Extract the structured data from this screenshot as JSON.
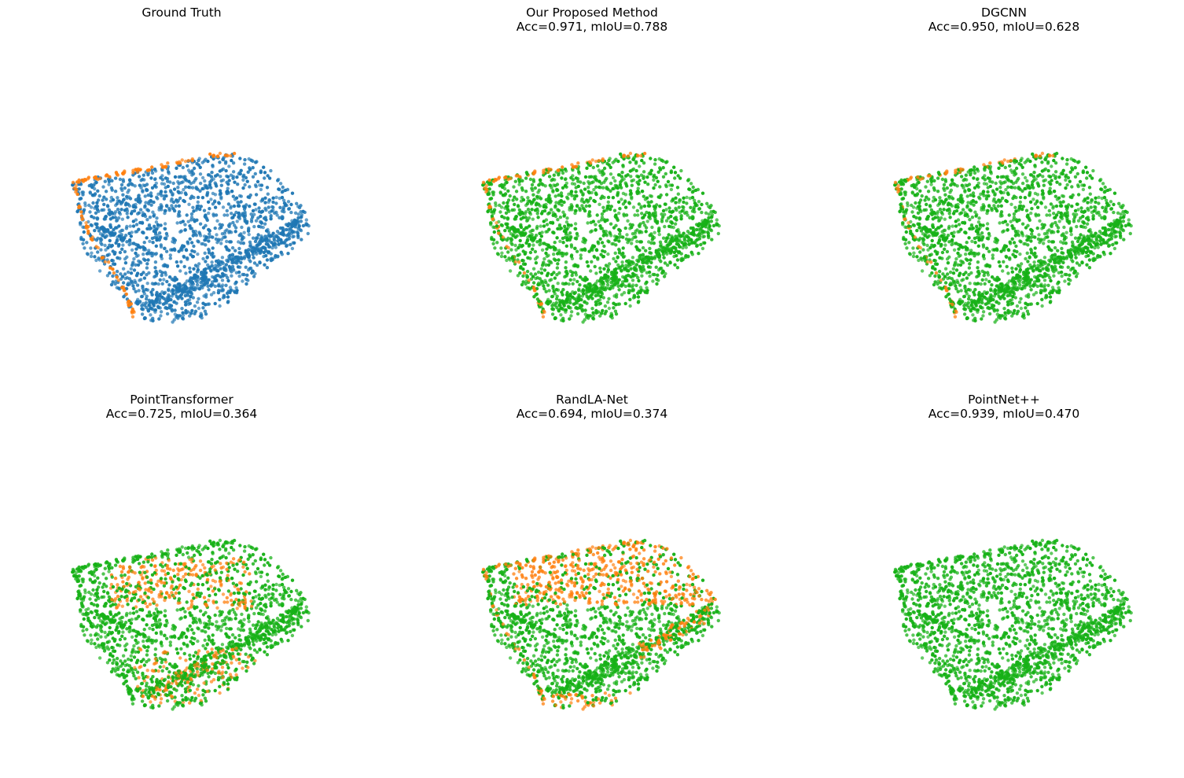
{
  "chart_data": [
    {
      "type": "scatter",
      "title": "Ground Truth",
      "subtitle": "",
      "pattern": "gt",
      "colors": {
        "majority": "#1f77b4",
        "minority": "#ff7f0e"
      }
    },
    {
      "type": "scatter",
      "title": "Our Proposed Method",
      "subtitle": "Acc=0.971, mIoU=0.788",
      "pattern": "ours",
      "colors": {
        "majority": "#17b117",
        "minority": "#ff7f0e"
      }
    },
    {
      "type": "scatter",
      "title": "DGCNN",
      "subtitle": "Acc=0.950, mIoU=0.628",
      "pattern": "dgcnn",
      "colors": {
        "majority": "#17b117",
        "minority": "#ff7f0e"
      }
    },
    {
      "type": "scatter",
      "title": "PointTransformer",
      "subtitle": "Acc=0.725, mIoU=0.364",
      "pattern": "pt",
      "colors": {
        "majority": "#17b117",
        "minority": "#ff7f0e"
      }
    },
    {
      "type": "scatter",
      "title": "RandLA-Net",
      "subtitle": "Acc=0.694, mIoU=0.374",
      "pattern": "randla",
      "colors": {
        "majority": "#17b117",
        "minority": "#ff7f0e"
      }
    },
    {
      "type": "scatter",
      "title": "PointNet++",
      "subtitle": "Acc=0.939, mIoU=0.470",
      "pattern": "pnpp",
      "colors": {
        "majority": "#17b117",
        "minority": "#ff7f0e"
      }
    }
  ]
}
